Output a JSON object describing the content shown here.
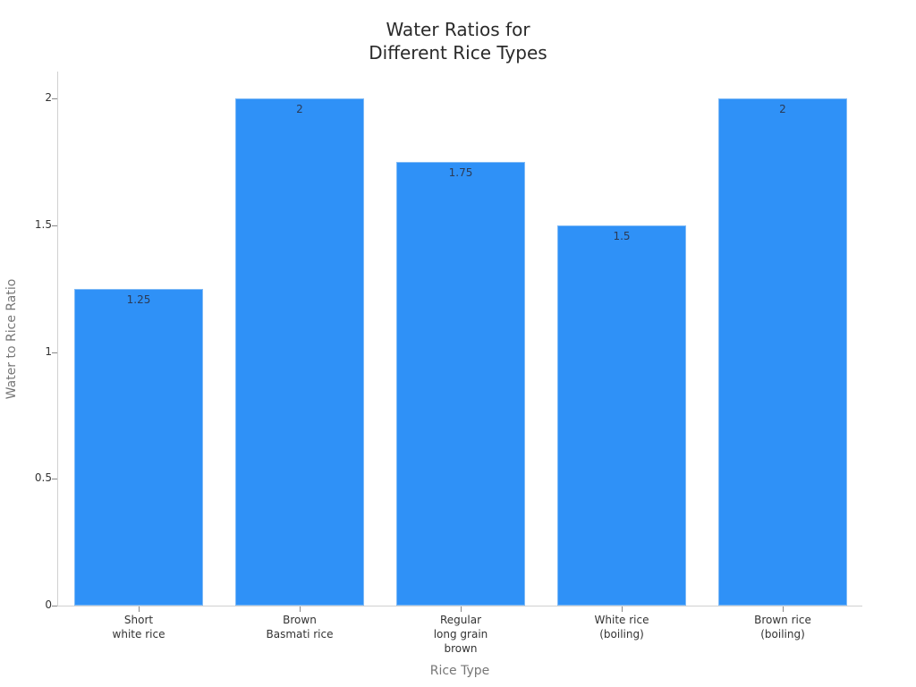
{
  "chart_data": {
    "type": "bar",
    "title": "Water Ratios for\nDifferent Rice Types",
    "xlabel": "Rice Type",
    "ylabel": "Water to Rice Ratio",
    "categories": [
      "Short\nwhite rice",
      "Brown\nBasmati rice",
      "Regular\nlong grain\nbrown",
      "White rice\n(boiling)",
      "Brown rice\n(boiling)"
    ],
    "values": [
      1.25,
      2,
      1.75,
      1.5,
      2
    ],
    "data_labels": [
      "1.25",
      "2",
      "1.75",
      "1.5",
      "2"
    ],
    "yticks": [
      "0",
      "0.5",
      "1",
      "1.5",
      "2"
    ],
    "ylim": [
      0,
      2.1
    ],
    "grid": false,
    "legend": null,
    "bar_color": "#2f91f7"
  },
  "title_line1": "Water Ratios for",
  "title_line2": "Different Rice Types"
}
